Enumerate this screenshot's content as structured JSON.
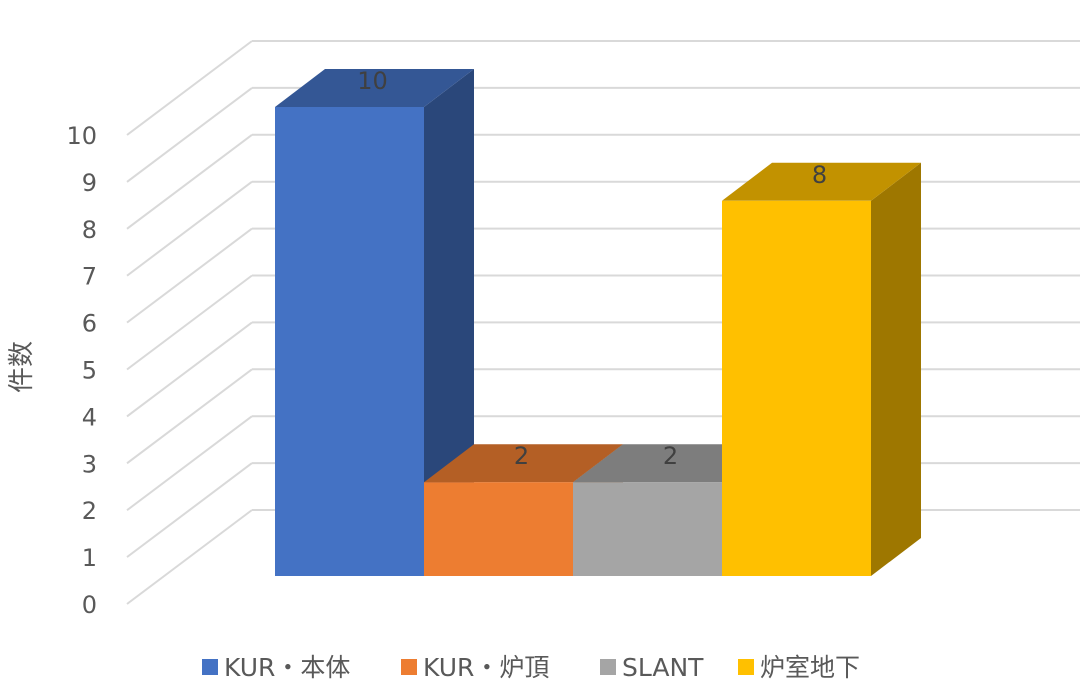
{
  "chart_data": {
    "type": "bar",
    "variant": "3d-column",
    "categories": [
      "KUR・本体",
      "KUR・炉頂",
      "SLANT",
      "炉室地下"
    ],
    "values": [
      10,
      2,
      2,
      8
    ],
    "colors": [
      "#4472C4",
      "#ED7D31",
      "#A5A5A5",
      "#FFC000"
    ],
    "ylabel": "件数",
    "ylim": [
      0,
      10
    ],
    "yticks": [
      0,
      1,
      2,
      3,
      4,
      5,
      6,
      7,
      8,
      9,
      10
    ],
    "grid": true,
    "data_labels": true,
    "legend": {
      "position": "bottom",
      "entries": [
        "KUR・本体",
        "KUR・炉頂",
        "SLANT",
        "炉室地下"
      ]
    }
  }
}
